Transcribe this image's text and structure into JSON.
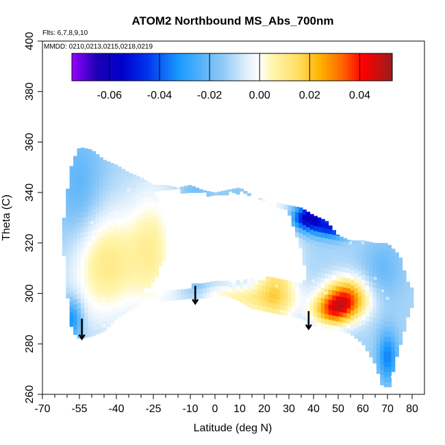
{
  "chart_data": {
    "type": "heatmap",
    "title": "ATOM2 Northbound MS_Abs_700nm",
    "notes": {
      "flights": "Flts: 6,7,8,9,10",
      "dates": "MMDD: 0210,0213,0215,0218,0219"
    },
    "xlabel": "Latitude (deg N)",
    "ylabel": "Theta (C)",
    "xlim": [
      -70,
      85
    ],
    "ylim": [
      260,
      400
    ],
    "x_major_ticks": [
      -70,
      -55,
      -40,
      -25,
      -10,
      0,
      10,
      20,
      30,
      40,
      50,
      60,
      70,
      80
    ],
    "x_tick_labels": [
      "-70",
      "-55",
      "-40",
      "-25",
      "-10",
      "0",
      "10",
      "20",
      "30",
      "40",
      "50",
      "60",
      "70",
      "80"
    ],
    "x_minor_ticks": [
      -65,
      -60,
      -50,
      -45,
      -35,
      -30,
      -20,
      -15,
      -5,
      5,
      15,
      25,
      35,
      45,
      55,
      65,
      75
    ],
    "y_ticks": [
      260,
      280,
      300,
      320,
      340,
      360,
      380,
      400
    ],
    "y_tick_labels": [
      "260",
      "280",
      "300",
      "320",
      "340",
      "360",
      "380",
      "400"
    ],
    "colorbar": {
      "range": [
        -0.075,
        0.053
      ],
      "ticks": [
        -0.06,
        -0.04,
        -0.02,
        0.0,
        0.02,
        0.04
      ],
      "tick_labels": [
        "-0.06",
        "-0.04",
        "-0.02",
        "0.00",
        "0.02",
        "0.04"
      ],
      "stops": [
        {
          "v": -0.075,
          "color": "#9900ff"
        },
        {
          "v": -0.065,
          "color": "#1a00b3"
        },
        {
          "v": -0.055,
          "color": "#0000cc"
        },
        {
          "v": -0.045,
          "color": "#0033ee"
        },
        {
          "v": -0.032,
          "color": "#1a9bff"
        },
        {
          "v": -0.015,
          "color": "#8ec9f7"
        },
        {
          "v": -0.005,
          "color": "#e2f0fc"
        },
        {
          "v": 0.0,
          "color": "#ffffff"
        },
        {
          "v": 0.005,
          "color": "#fff6b0"
        },
        {
          "v": 0.015,
          "color": "#ffe066"
        },
        {
          "v": 0.024,
          "color": "#ffb300"
        },
        {
          "v": 0.033,
          "color": "#ff6600"
        },
        {
          "v": 0.041,
          "color": "#ff0000"
        },
        {
          "v": 0.053,
          "color": "#9b1c1c"
        }
      ]
    },
    "data_boundary": {
      "top": [
        [
          -62,
          324
        ],
        [
          -60,
          340
        ],
        [
          -58,
          352
        ],
        [
          -55,
          358
        ],
        [
          -50,
          357
        ],
        [
          -45,
          353
        ],
        [
          -40,
          351
        ],
        [
          -35,
          348
        ],
        [
          -30,
          346
        ],
        [
          -25,
          343
        ],
        [
          -20,
          343
        ],
        [
          -15,
          342
        ],
        [
          -10,
          343
        ],
        [
          -5,
          341
        ],
        [
          0,
          340
        ],
        [
          5,
          341
        ],
        [
          10,
          342
        ],
        [
          15,
          339
        ],
        [
          20,
          337
        ],
        [
          25,
          336
        ],
        [
          30,
          335
        ],
        [
          35,
          334
        ],
        [
          40,
          331
        ],
        [
          45,
          329
        ],
        [
          50,
          323
        ],
        [
          55,
          321
        ],
        [
          60,
          321
        ],
        [
          65,
          320
        ],
        [
          70,
          320
        ],
        [
          75,
          315
        ],
        [
          78,
          305
        ],
        [
          80,
          302
        ]
      ],
      "bottom": [
        [
          -62,
          324
        ],
        [
          -60,
          300
        ],
        [
          -58,
          285
        ],
        [
          -55,
          282
        ],
        [
          -50,
          283
        ],
        [
          -45,
          285
        ],
        [
          -40,
          290
        ],
        [
          -30,
          296
        ],
        [
          -20,
          297
        ],
        [
          -10,
          298
        ],
        [
          -5,
          298
        ],
        [
          0,
          299
        ],
        [
          5,
          299
        ],
        [
          10,
          297
        ],
        [
          15,
          294
        ],
        [
          20,
          293
        ],
        [
          25,
          292
        ],
        [
          30,
          291
        ],
        [
          35,
          290
        ],
        [
          40,
          287
        ],
        [
          45,
          286
        ],
        [
          50,
          285
        ],
        [
          55,
          284
        ],
        [
          60,
          280
        ],
        [
          65,
          272
        ],
        [
          68,
          263
        ],
        [
          71,
          263
        ],
        [
          72,
          268
        ],
        [
          74,
          276
        ],
        [
          76,
          282
        ],
        [
          78,
          290
        ],
        [
          80,
          295
        ],
        [
          80,
          302
        ]
      ]
    },
    "interior_gap": {
      "polygon": [
        [
          -30,
          300
        ],
        [
          -20,
          301
        ],
        [
          -10,
          303
        ],
        [
          0,
          304
        ],
        [
          10,
          305
        ],
        [
          20,
          306
        ],
        [
          30,
          305
        ],
        [
          35,
          304
        ],
        [
          38,
          306
        ],
        [
          34,
          320
        ],
        [
          30,
          332
        ],
        [
          20,
          338
        ],
        [
          10,
          340
        ],
        [
          0,
          339
        ],
        [
          -10,
          340
        ],
        [
          -20,
          342
        ],
        [
          -25,
          341
        ],
        [
          -20,
          330
        ],
        [
          -20,
          315
        ],
        [
          -25,
          305
        ]
      ],
      "note": "region without shading above the low-altitude leg"
    },
    "field_features": [
      {
        "lat": -45,
        "theta": 312,
        "value": 0.016,
        "radius_lat": 14,
        "radius_theta": 22
      },
      {
        "lat": -25,
        "theta": 318,
        "value": 0.011,
        "radius_lat": 10,
        "radius_theta": 25
      },
      {
        "lat": -55,
        "theta": 340,
        "value": -0.018,
        "radius_lat": 10,
        "radius_theta": 25
      },
      {
        "lat": -8,
        "theta": 320,
        "value": -0.02,
        "radius_lat": 6,
        "radius_theta": 25
      },
      {
        "lat": 10,
        "theta": 330,
        "value": -0.015,
        "radius_lat": 8,
        "radius_theta": 12
      },
      {
        "lat": 25,
        "theta": 310,
        "value": 0.018,
        "radius_lat": 8,
        "radius_theta": 25
      },
      {
        "lat": 10,
        "theta": 298,
        "value": 0.012,
        "radius_lat": 20,
        "radius_theta": 6
      },
      {
        "lat": 53,
        "theta": 298,
        "value": 0.04,
        "radius_lat": 9,
        "radius_theta": 8
      },
      {
        "lat": 47,
        "theta": 293,
        "value": 0.025,
        "radius_lat": 8,
        "radius_theta": 6
      },
      {
        "lat": 38,
        "theta": 330,
        "value": -0.055,
        "radius_lat": 7,
        "radius_theta": 5
      },
      {
        "lat": 48,
        "theta": 326,
        "value": -0.04,
        "radius_lat": 7,
        "radius_theta": 4
      },
      {
        "lat": 68,
        "theta": 310,
        "value": -0.015,
        "radius_lat": 8,
        "radius_theta": 12
      },
      {
        "lat": 70,
        "theta": 275,
        "value": -0.03,
        "radius_lat": 4,
        "radius_theta": 10
      },
      {
        "lat": -58,
        "theta": 290,
        "value": -0.03,
        "radius_lat": 4,
        "radius_theta": 8
      }
    ],
    "arrows": [
      {
        "lat": -54,
        "theta_top": 290,
        "theta_tip": 282
      },
      {
        "lat": -8,
        "theta_top": 303,
        "theta_tip": 296
      },
      {
        "lat": 38,
        "theta_top": 293,
        "theta_tip": 286
      }
    ],
    "sample_points": [
      [
        -60,
        297
      ],
      [
        -55,
        307
      ],
      [
        -50,
        328
      ],
      [
        -45,
        298
      ],
      [
        -45,
        287
      ],
      [
        -40,
        332
      ],
      [
        -35,
        341
      ],
      [
        -28,
        337
      ],
      [
        -20,
        344
      ],
      [
        -15,
        342
      ],
      [
        5,
        342
      ],
      [
        10,
        338
      ],
      [
        20,
        340
      ],
      [
        25,
        303
      ],
      [
        27,
        293
      ],
      [
        30,
        330
      ],
      [
        35,
        335
      ],
      [
        40,
        305
      ],
      [
        45,
        300
      ],
      [
        50,
        324
      ],
      [
        55,
        320
      ],
      [
        60,
        320
      ],
      [
        65,
        306
      ],
      [
        68,
        301
      ],
      [
        70,
        298
      ],
      [
        72,
        267
      ],
      [
        75,
        318
      ]
    ]
  }
}
